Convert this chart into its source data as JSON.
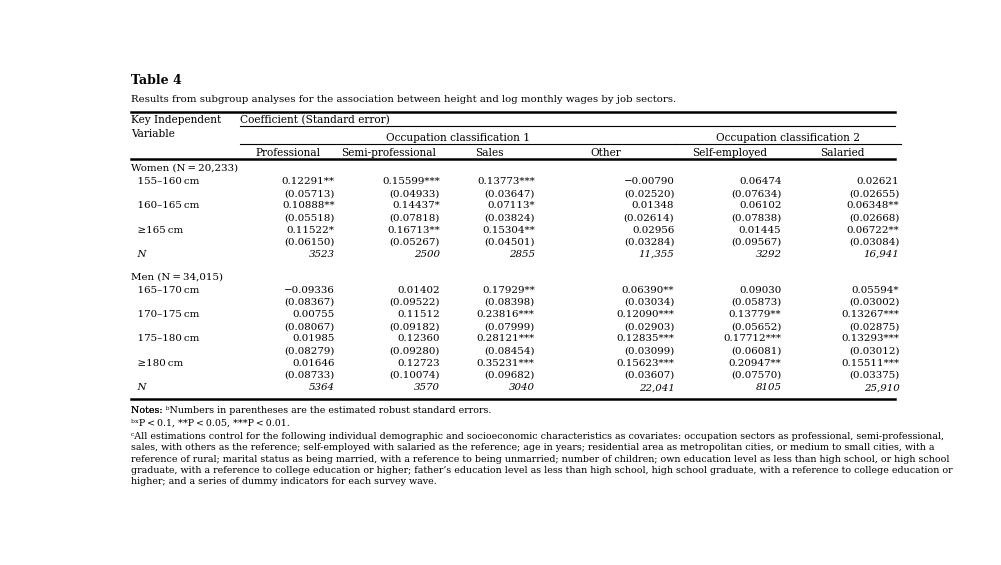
{
  "title": "Table 4",
  "subtitle": "Results from subgroup analyses for the association between height and log monthly wages by job sectors.",
  "col_header_2": "Coefficient (Standard error)",
  "occ_class_1": "Occupation classification 1",
  "occ_class_2": "Occupation classification 2",
  "sub_headers": [
    "Professional",
    "Semi-professional",
    "Sales",
    "Other",
    "Self-employed",
    "Salaried"
  ],
  "women_header": "Women (N = 20,233)",
  "men_header": "Men (N = 34,015)",
  "rows_women": [
    {
      "label": "  155–160 cm",
      "vals": [
        "0.12291**",
        "0.15599***",
        "0.13773***",
        "−0.00790",
        "0.06474",
        "0.02621"
      ],
      "se": [
        "(0.05713)",
        "(0.04933)",
        "(0.03647)",
        "(0.02520)",
        "(0.07634)",
        "(0.02655)"
      ]
    },
    {
      "label": "  160–165 cm",
      "vals": [
        "0.10888**",
        "0.14437*",
        "0.07113*",
        "0.01348",
        "0.06102",
        "0.06348**"
      ],
      "se": [
        "(0.05518)",
        "(0.07818)",
        "(0.03824)",
        "(0.02614)",
        "(0.07838)",
        "(0.02668)"
      ]
    },
    {
      "label": "  ≥165 cm",
      "vals": [
        "0.11522*",
        "0.16713**",
        "0.15304**",
        "0.02956",
        "0.01445",
        "0.06722**"
      ],
      "se": [
        "(0.06150)",
        "(0.05267)",
        "(0.04501)",
        "(0.03284)",
        "(0.09567)",
        "(0.03084)"
      ]
    },
    {
      "label": "  N",
      "vals": [
        "3523",
        "2500",
        "2855",
        "11,355",
        "3292",
        "16,941"
      ],
      "se": null,
      "italic": true
    }
  ],
  "rows_men": [
    {
      "label": "  165–170 cm",
      "vals": [
        "−0.09336",
        "0.01402",
        "0.17929**",
        "0.06390**",
        "0.09030",
        "0.05594*"
      ],
      "se": [
        "(0.08367)",
        "(0.09522)",
        "(0.08398)",
        "(0.03034)",
        "(0.05873)",
        "(0.03002)"
      ]
    },
    {
      "label": "  170–175 cm",
      "vals": [
        "0.00755",
        "0.11512",
        "0.23816***",
        "0.12090***",
        "0.13779**",
        "0.13267***"
      ],
      "se": [
        "(0.08067)",
        "(0.09182)",
        "(0.07999)",
        "(0.02903)",
        "(0.05652)",
        "(0.02875)"
      ]
    },
    {
      "label": "  175–180 cm",
      "vals": [
        "0.01985",
        "0.12360",
        "0.28121***",
        "0.12835***",
        "0.17712***",
        "0.13293***"
      ],
      "se": [
        "(0.08279)",
        "(0.09280)",
        "(0.08454)",
        "(0.03099)",
        "(0.06081)",
        "(0.03012)"
      ]
    },
    {
      "label": "  ≥180 cm",
      "vals": [
        "0.01646",
        "0.12723",
        "0.35231***",
        "0.15623***",
        "0.20947**",
        "0.15511***"
      ],
      "se": [
        "(0.08733)",
        "(0.10074)",
        "(0.09682)",
        "(0.03607)",
        "(0.07570)",
        "(0.03375)"
      ]
    },
    {
      "label": "  N",
      "vals": [
        "5364",
        "3570",
        "3040",
        "22,041",
        "8105",
        "25,910"
      ],
      "se": null,
      "italic": true
    }
  ],
  "notes": [
    [
      "Notes: ",
      "a",
      "Numbers in parentheses are the estimated robust standard errors."
    ],
    [
      "bx",
      "P < 0.1, **P < 0.05, ***P < 0.01."
    ],
    [
      "c",
      "All estimations control for the following individual demographic and socioeconomic characteristics as covariates: occupation sectors as professional, semi-professional,"
    ],
    [
      "",
      "sales, with others as the reference; self-employed with salaried as the reference; age in years; residential area as metropolitan cities, or medium to small cities, with a"
    ],
    [
      "",
      "reference of rural; marital status as being married, with a reference to being unmarried; number of children; own education level as less than high school, or high school"
    ],
    [
      "",
      "graduate, with a reference to college education or higher; father’s education level as less than high school, high school graduate, with a reference to college education or"
    ],
    [
      "",
      "higher; and a series of dummy indicators for each survey wave."
    ]
  ],
  "bg_color": "white",
  "text_color": "black"
}
